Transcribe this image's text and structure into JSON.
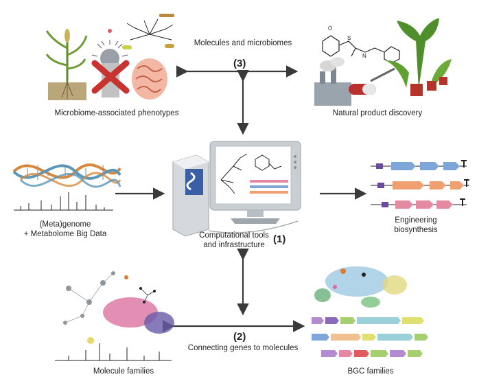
{
  "labels": {
    "molecules_microbiomes": "Molecules and microbiomes",
    "microbiome_phenotypes": "Microbiome-associated phenotypes",
    "natural_product_discovery": "Natural product discovery",
    "metagenome_line1": "(Meta)genome",
    "metagenome_line2": "+ Metabolome Big Data",
    "computational_line1": "Computational tools",
    "computational_line2": "and infrastructure",
    "engineering_line1": "Engineering",
    "engineering_line2": "biosynthesis",
    "connecting": "Connecting genes to molecules",
    "molecule_families": "Molecule families",
    "bgc_families": "BGC families"
  },
  "numbers": {
    "n1": "(1)",
    "n2": "(2)",
    "n3": "(3)"
  },
  "colors": {
    "arrow": "#3a3a3a",
    "dna_orange": "#d9883b",
    "dna_blue": "#5a97b8",
    "gene_blue": "#7fa6d8",
    "gene_orange": "#f0a070",
    "gene_pink": "#e58aa0",
    "network_pink": "#d86a9a",
    "network_purple": "#6a5aa8"
  }
}
